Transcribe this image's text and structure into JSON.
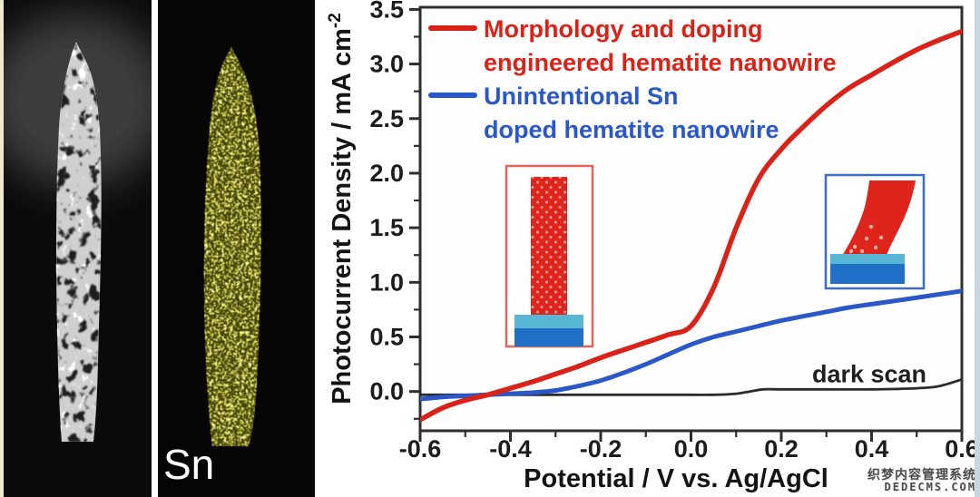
{
  "panels": {
    "sn_map": {
      "label": "Sn"
    }
  },
  "chart_data": {
    "type": "line",
    "title": "",
    "xlabel": "Potential / V vs. Ag/AgCl",
    "ylabel": {
      "text": "Photocurrent Density / mA cm",
      "sup": "-2"
    },
    "xlim": [
      -0.6,
      0.6
    ],
    "ylim": [
      -0.36,
      3.52
    ],
    "grid": false,
    "legend_position": "top-left inside",
    "x_ticks": [
      {
        "v": -0.6,
        "label": "-0.6"
      },
      {
        "v": -0.4,
        "label": "-0.4"
      },
      {
        "v": -0.2,
        "label": "-0.2"
      },
      {
        "v": 0.0,
        "label": "0.0"
      },
      {
        "v": 0.2,
        "label": "0.2"
      },
      {
        "v": 0.4,
        "label": "0.4"
      },
      {
        "v": 0.6,
        "label": "0.6"
      }
    ],
    "y_ticks": [
      {
        "v": 0.0,
        "label": "0.0"
      },
      {
        "v": 0.5,
        "label": "0.5"
      },
      {
        "v": 1.0,
        "label": "1.0"
      },
      {
        "v": 1.5,
        "label": "1.5"
      },
      {
        "v": 2.0,
        "label": "2.0"
      },
      {
        "v": 2.5,
        "label": "2.5"
      },
      {
        "v": 3.0,
        "label": "3.0"
      },
      {
        "v": 3.5,
        "label": "3.5"
      }
    ],
    "series": [
      {
        "name": "Morphology and doping engineered hematite nanowire",
        "color": "#d92318",
        "width": 5.5,
        "points": [
          [
            -0.6,
            -0.26
          ],
          [
            -0.55,
            -0.15
          ],
          [
            -0.5,
            -0.08
          ],
          [
            -0.45,
            -0.03
          ],
          [
            -0.4,
            0.03
          ],
          [
            -0.35,
            0.09
          ],
          [
            -0.3,
            0.16
          ],
          [
            -0.25,
            0.23
          ],
          [
            -0.2,
            0.31
          ],
          [
            -0.15,
            0.38
          ],
          [
            -0.1,
            0.45
          ],
          [
            -0.05,
            0.52
          ],
          [
            0.0,
            0.6
          ],
          [
            0.05,
            0.95
          ],
          [
            0.1,
            1.5
          ],
          [
            0.15,
            1.95
          ],
          [
            0.2,
            2.22
          ],
          [
            0.25,
            2.43
          ],
          [
            0.3,
            2.62
          ],
          [
            0.35,
            2.78
          ],
          [
            0.4,
            2.9
          ],
          [
            0.45,
            3.02
          ],
          [
            0.5,
            3.13
          ],
          [
            0.55,
            3.22
          ],
          [
            0.6,
            3.3
          ]
        ]
      },
      {
        "name": "Unintentional Sn doped hematite nanowire",
        "color": "#2a58c8",
        "width": 5,
        "points": [
          [
            -0.6,
            -0.07
          ],
          [
            -0.55,
            -0.05
          ],
          [
            -0.5,
            -0.04
          ],
          [
            -0.45,
            -0.03
          ],
          [
            -0.4,
            -0.02
          ],
          [
            -0.35,
            -0.01
          ],
          [
            -0.3,
            0.01
          ],
          [
            -0.25,
            0.05
          ],
          [
            -0.2,
            0.1
          ],
          [
            -0.15,
            0.17
          ],
          [
            -0.1,
            0.25
          ],
          [
            -0.05,
            0.34
          ],
          [
            0.0,
            0.43
          ],
          [
            0.05,
            0.5
          ],
          [
            0.1,
            0.55
          ],
          [
            0.15,
            0.6
          ],
          [
            0.2,
            0.65
          ],
          [
            0.25,
            0.69
          ],
          [
            0.3,
            0.73
          ],
          [
            0.35,
            0.77
          ],
          [
            0.4,
            0.8
          ],
          [
            0.45,
            0.83
          ],
          [
            0.5,
            0.86
          ],
          [
            0.55,
            0.89
          ],
          [
            0.6,
            0.92
          ]
        ]
      },
      {
        "name": "dark scan",
        "color": "#2b2b2b",
        "width": 2.8,
        "points": [
          [
            -0.6,
            -0.03
          ],
          [
            -0.5,
            -0.03
          ],
          [
            -0.4,
            -0.03
          ],
          [
            -0.3,
            -0.03
          ],
          [
            -0.2,
            -0.03
          ],
          [
            -0.1,
            -0.03
          ],
          [
            0.0,
            -0.03
          ],
          [
            0.05,
            -0.03
          ],
          [
            0.1,
            -0.02
          ],
          [
            0.13,
            0.0
          ],
          [
            0.16,
            0.02
          ],
          [
            0.2,
            0.02
          ],
          [
            0.3,
            0.02
          ],
          [
            0.4,
            0.02
          ],
          [
            0.5,
            0.03
          ],
          [
            0.55,
            0.05
          ],
          [
            0.6,
            0.11
          ]
        ]
      }
    ],
    "annotations": [
      {
        "text": "dark scan",
        "x": 0.395,
        "y": 0.085
      }
    ]
  },
  "legend": {
    "entries": [
      {
        "lines": [
          "Morphology and doping",
          "engineered hematite nanowire"
        ],
        "color": "#d92318"
      },
      {
        "lines": [
          "Unintentional Sn",
          "doped hematite nanowire"
        ],
        "color": "#2a58c8"
      }
    ]
  },
  "watermark": {
    "line1": "织梦内容管理系统",
    "line2": "DEDECMS.COM"
  }
}
